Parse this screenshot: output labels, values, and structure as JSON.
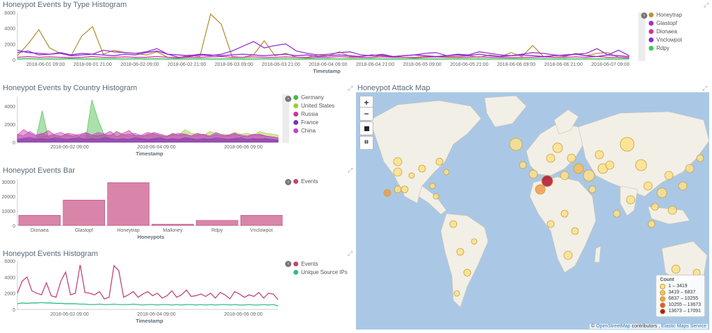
{
  "panels": {
    "type_hist": {
      "title": "Honeypot Events by Type Histogram",
      "xlabel": "Timestamp",
      "yticks": [
        "6000",
        "4000",
        "2000",
        "0"
      ],
      "xticks": [
        "2018-06-01 09:00",
        "2018-06-01 21:00",
        "2018-06-02 09:00",
        "2018-06-02 21:00",
        "2018-06-03 09:00",
        "2018-06-03 21:00",
        "2018-06-04 09:00",
        "2018-06-04 21:00",
        "2018-06-05 09:00",
        "2018-06-05 21:00",
        "2018-06-06 09:00",
        "2018-06-06 21:00",
        "2018-06-07 09:00"
      ],
      "legend": [
        {
          "label": "Honeytrap",
          "color": "#b8913d"
        },
        {
          "label": "Glastopf",
          "color": "#9933cc"
        },
        {
          "label": "Dionaea",
          "color": "#cc3399"
        },
        {
          "label": "Vnclowpot",
          "color": "#8a2bd6"
        },
        {
          "label": "Rdpy",
          "color": "#33cc55"
        }
      ]
    },
    "country_hist": {
      "title": "Honeypot Events by Country Histogram",
      "xlabel": "Timestamp",
      "yticks": [
        "4000",
        "2000",
        "0"
      ],
      "xticks": [
        "2018-06-02 09:00",
        "2018-06-04 09:00",
        "2018-06-06 09:00"
      ],
      "legend": [
        {
          "label": "Germany",
          "color": "#44bb44"
        },
        {
          "label": "United States",
          "color": "#99cc33"
        },
        {
          "label": "Russia",
          "color": "#cc3399"
        },
        {
          "label": "France",
          "color": "#7733bb"
        },
        {
          "label": "China",
          "color": "#bb44cc"
        }
      ]
    },
    "events_bar": {
      "title": "Honeypot Events Bar",
      "xlabel": "Honeypots",
      "yticks": [
        "30000",
        "20000",
        "10000",
        "0"
      ],
      "legend": [
        {
          "label": "Events",
          "color": "#c2447a"
        }
      ]
    },
    "events_hist": {
      "title": "Honeypot Events Histogram",
      "xlabel": "Timestamp",
      "yticks": [
        "6000",
        "4000",
        "2000",
        "0"
      ],
      "xticks": [
        "2018-06-02 09:00",
        "2018-06-04 09:00",
        "2018-06-06 09:00"
      ],
      "legend": [
        {
          "label": "Events",
          "color": "#c2447a"
        },
        {
          "label": "Unique Source IPs",
          "color": "#2ebf85"
        }
      ]
    },
    "attack_map": {
      "title": "Honeypot Attack Map",
      "zoom_in": "+",
      "zoom_out": "−",
      "legend_title": "Count",
      "legend": [
        {
          "label": "1 – 3419",
          "color": "#fde18a"
        },
        {
          "label": "3419 – 6837",
          "color": "#f9c15a"
        },
        {
          "label": "6837 – 10255",
          "color": "#f59a4a"
        },
        {
          "label": "10255 – 13673",
          "color": "#e0553a"
        },
        {
          "label": "13673 – 17091",
          "color": "#b5122b"
        }
      ],
      "attribution_prefix": "©",
      "attribution_osm": "OpenStreetMap",
      "attribution_mid": "contributors ,",
      "attribution_ems": "Elastic Maps Service"
    }
  },
  "chart_data": [
    {
      "type": "line",
      "title": "Honeypot Events by Type Histogram",
      "xlabel": "Timestamp",
      "ylim": [
        0,
        6000
      ],
      "series": [
        {
          "name": "Honeytrap",
          "values": [
            500,
            2000,
            3800,
            1500,
            800,
            500,
            3000,
            4200,
            700,
            1200,
            900,
            800,
            600,
            1000,
            300,
            200,
            600,
            400,
            5800,
            4500,
            400,
            300,
            600,
            2400,
            500,
            800,
            300,
            300,
            600,
            500,
            1000,
            400,
            300,
            300,
            600,
            400,
            300,
            300,
            400,
            400,
            400,
            400,
            500,
            300,
            600,
            400,
            900,
            400,
            1800,
            400,
            300,
            400,
            800,
            500,
            800,
            900,
            300,
            200
          ]
        },
        {
          "name": "Glastopf",
          "values": [
            900,
            1100,
            600,
            700,
            800,
            500,
            600,
            700,
            1200,
            1000,
            900,
            800,
            1000,
            1400,
            700,
            300,
            400,
            600,
            500,
            700,
            1100,
            1700,
            2300,
            1500,
            1800,
            2000,
            1100,
            800,
            600,
            700,
            900,
            1000,
            600,
            500,
            700,
            400,
            500,
            600,
            800,
            900,
            500,
            700,
            600,
            1000,
            800,
            600,
            500,
            700,
            900,
            800,
            600,
            500,
            700,
            800,
            1400,
            600,
            1200,
            500
          ]
        },
        {
          "name": "Dionaea",
          "values": [
            300,
            400,
            300,
            350,
            300,
            250,
            300,
            400,
            300,
            300,
            350,
            300,
            300,
            400,
            300,
            250,
            300,
            300,
            350,
            400,
            300,
            300,
            350,
            300,
            300,
            350,
            300,
            250,
            300,
            300,
            400,
            300,
            300,
            300,
            350,
            300,
            300,
            250,
            300,
            350,
            300,
            300,
            300,
            350,
            300,
            300,
            250,
            300,
            300,
            350,
            300,
            300,
            350,
            300,
            400,
            300,
            300,
            250
          ]
        },
        {
          "name": "Vnclowpot",
          "values": [
            1200,
            900,
            800,
            700,
            900,
            600,
            800,
            700,
            600,
            500,
            700,
            600,
            900,
            1100,
            700,
            600,
            500,
            700,
            600,
            500,
            600,
            700,
            600,
            500,
            600,
            700,
            500,
            600,
            400,
            500,
            600,
            500,
            400,
            600,
            500,
            400,
            500,
            600,
            500,
            400,
            500,
            600,
            500,
            700,
            500,
            400,
            500,
            600,
            500,
            400,
            500,
            600,
            700,
            500,
            400,
            600,
            500,
            400
          ]
        },
        {
          "name": "Rdpy",
          "values": [
            100,
            150,
            100,
            120,
            100,
            130,
            100,
            110,
            100,
            120,
            100,
            130,
            100,
            120,
            100,
            110,
            100,
            120,
            100,
            100,
            120,
            110,
            100,
            120,
            100,
            130,
            100,
            110,
            100,
            120,
            100,
            110,
            100,
            120,
            100,
            110,
            100,
            120,
            100,
            110,
            100,
            120,
            100,
            110,
            100,
            120,
            100,
            110,
            100,
            120,
            100,
            110,
            100,
            120,
            100,
            110,
            100,
            120
          ]
        }
      ]
    },
    {
      "type": "area",
      "title": "Honeypot Events by Country Histogram",
      "xlabel": "Timestamp",
      "ylim": [
        0,
        5000
      ],
      "series": [
        {
          "name": "Germany",
          "values": [
            200,
            300,
            200,
            400,
            3500,
            500,
            300,
            200,
            300,
            400,
            200,
            300,
            4700,
            2500,
            800,
            400,
            300,
            200,
            300,
            400,
            300,
            200,
            300,
            400,
            300,
            200,
            300,
            400,
            300,
            200,
            300,
            400,
            300,
            200,
            300,
            400,
            300,
            200,
            300,
            400,
            300,
            200,
            300
          ]
        },
        {
          "name": "United States",
          "values": [
            400,
            500,
            600,
            500,
            700,
            600,
            800,
            700,
            900,
            600,
            700,
            800,
            600,
            900,
            700,
            800,
            1200,
            900,
            700,
            800,
            600,
            900,
            1000,
            800,
            700,
            900,
            800,
            1400,
            1000,
            900,
            800,
            1200,
            1000,
            900,
            800,
            1100,
            900,
            1000,
            800,
            1200,
            1000,
            900,
            800
          ]
        },
        {
          "name": "Russia",
          "values": [
            800,
            1400,
            1000,
            700,
            900,
            1300,
            800,
            600,
            1000,
            900,
            700,
            1100,
            800,
            700,
            900,
            1200,
            600,
            1000,
            1300,
            700,
            800,
            1100,
            900,
            700,
            600,
            1000,
            800,
            900,
            700,
            1000,
            800,
            600,
            900,
            700,
            800,
            1000,
            700,
            600,
            800,
            900,
            700,
            600,
            500
          ]
        },
        {
          "name": "France",
          "values": [
            300,
            400,
            500,
            300,
            400,
            300,
            500,
            400,
            300,
            400,
            500,
            300,
            400,
            300,
            500,
            400,
            300,
            400,
            300,
            500,
            400,
            300,
            400,
            500,
            300,
            400,
            300,
            500,
            400,
            300,
            400,
            300,
            500,
            400,
            300,
            400,
            500,
            300,
            400,
            300,
            400,
            300,
            200
          ]
        },
        {
          "name": "China",
          "values": [
            900,
            700,
            1200,
            800,
            1000,
            700,
            900,
            1100,
            800,
            700,
            900,
            1000,
            800,
            1100,
            900,
            700,
            1200,
            800,
            900,
            1000,
            700,
            800,
            1100,
            900,
            700,
            800,
            1000,
            900,
            700,
            800,
            900,
            700,
            1100,
            800,
            700,
            900,
            800,
            700,
            900,
            800,
            700,
            600,
            500
          ]
        }
      ]
    },
    {
      "type": "bar",
      "title": "Honeypot Events Bar",
      "xlabel": "Honeypots",
      "categories": [
        "Dionaea",
        "Glastopf",
        "Honeytrap",
        "Mailoney",
        "Rdpy",
        "Vnclowpot"
      ],
      "values": [
        7000,
        17500,
        29500,
        900,
        3500,
        7000
      ],
      "ylim": [
        0,
        32000
      ],
      "series": [
        {
          "name": "Events",
          "values": [
            7000,
            17500,
            29500,
            900,
            3500,
            7000
          ]
        }
      ]
    },
    {
      "type": "line",
      "title": "Honeypot Events Histogram",
      "xlabel": "Timestamp",
      "ylim": [
        0,
        6000
      ],
      "series": [
        {
          "name": "Events",
          "values": [
            2000,
            3500,
            4000,
            2300,
            2000,
            1800,
            3300,
            1700,
            1500,
            3500,
            4600,
            1800,
            2000,
            5500,
            2100,
            2000,
            1800,
            2200,
            1300,
            1500,
            5400,
            4800,
            1500,
            1800,
            2200,
            1500,
            1900,
            2200,
            1700,
            2000,
            1400,
            1700,
            2300,
            1500,
            1800,
            2400,
            1600,
            1700,
            1900,
            1600,
            2000,
            1400,
            2100,
            1800,
            1300,
            2200,
            1900,
            1500,
            1800,
            1600,
            2100,
            1400,
            2000,
            1900,
            1200
          ]
        },
        {
          "name": "Unique Source IPs",
          "values": [
            700,
            800,
            750,
            800,
            800,
            850,
            800,
            800,
            750,
            750,
            700,
            700,
            700,
            650,
            650,
            600,
            600,
            650,
            600,
            600,
            650,
            600,
            600,
            600,
            650,
            600,
            550,
            600,
            600,
            550,
            600,
            600,
            550,
            600,
            550,
            600,
            600,
            550,
            600,
            550,
            600,
            550,
            600,
            600,
            550,
            600,
            550,
            550,
            600,
            550,
            550,
            600,
            550,
            600,
            400
          ]
        }
      ]
    }
  ]
}
